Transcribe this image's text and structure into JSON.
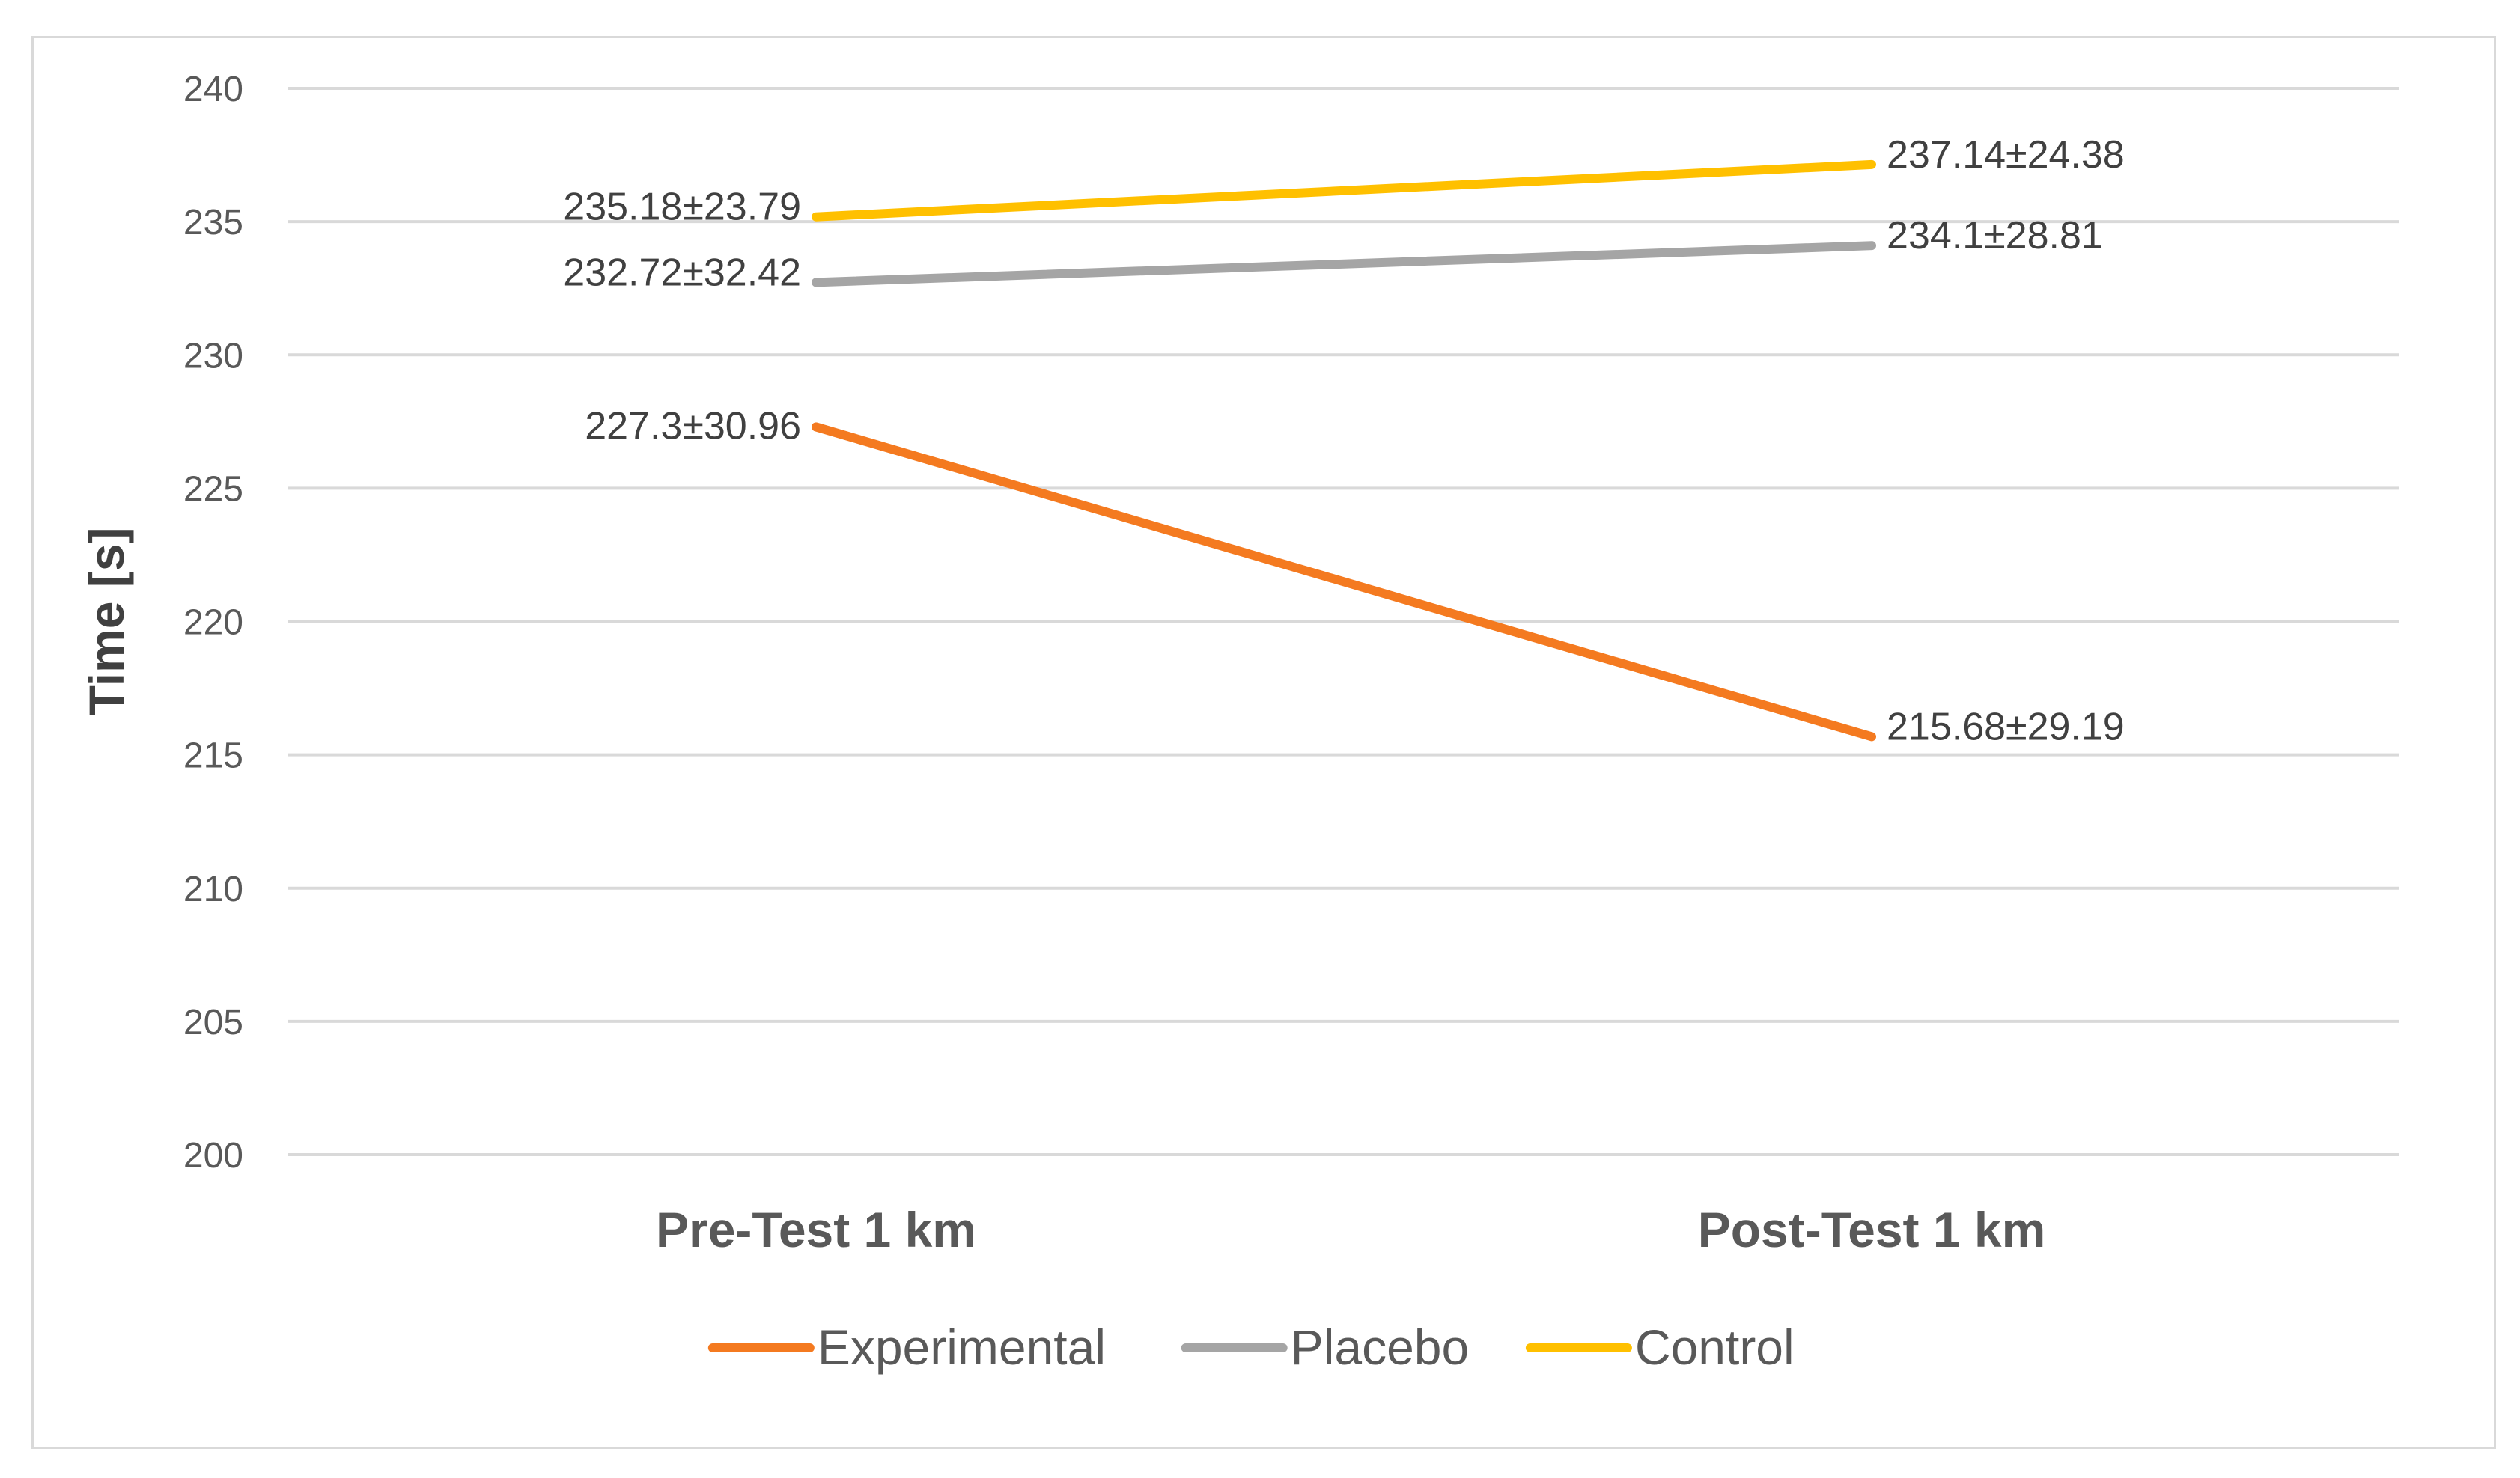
{
  "chart_data": {
    "type": "line",
    "title": "",
    "xlabel": "",
    "ylabel": "Time [s]",
    "categories": [
      "Pre-Test 1 km",
      "Post-Test 1 km"
    ],
    "ylim": [
      200,
      240
    ],
    "yticks": [
      200,
      205,
      210,
      215,
      220,
      225,
      230,
      235,
      240
    ],
    "grid": true,
    "legend_position": "bottom",
    "series": [
      {
        "name": "Experimental",
        "color": "#f47a20",
        "values": [
          227.3,
          215.68
        ],
        "labels": [
          "227.3±30.96",
          "215.68±29.19"
        ]
      },
      {
        "name": "Placebo",
        "color": "#a5a5a5",
        "values": [
          232.72,
          234.1
        ],
        "labels": [
          "232.72±32.42",
          "234.1±28.81"
        ]
      },
      {
        "name": "Control",
        "color": "#ffc000",
        "values": [
          235.18,
          237.14
        ],
        "labels": [
          "235.18±23.79",
          "237.14±24.38"
        ]
      }
    ]
  }
}
